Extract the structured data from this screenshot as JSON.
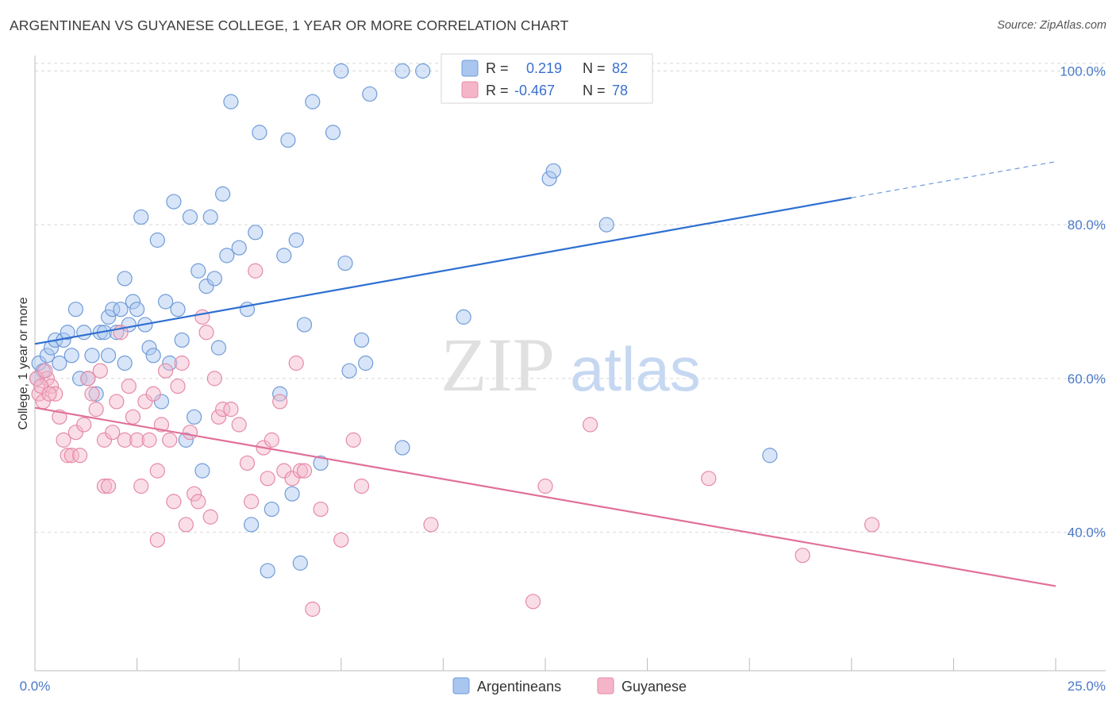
{
  "title": "ARGENTINEAN VS GUYANESE COLLEGE, 1 YEAR OR MORE CORRELATION CHART",
  "source": "Source: ZipAtlas.com",
  "watermark": {
    "zip": "ZIP",
    "atlas": "atlas"
  },
  "colors": {
    "blue_fill": "#a9c6ef",
    "blue_stroke": "#6f9bd8",
    "blue_line": "#2e6fd1",
    "pink_fill": "#f5b5c9",
    "pink_stroke": "#e58aa6",
    "pink_line": "#e0709a",
    "grid": "#d8d8d8",
    "tick_text": "#4a78c9"
  },
  "legend": {
    "rows": [
      {
        "r_label": "R =",
        "r_value": "0.219",
        "n_label": "N =",
        "n_value": "82"
      },
      {
        "r_label": "R =",
        "r_value": "-0.467",
        "n_label": "N =",
        "n_value": "78"
      }
    ]
  },
  "bottom_legend": [
    "Argentineans",
    "Guyanese"
  ],
  "chart_data": {
    "type": "scatter",
    "xlabel": "",
    "ylabel": "College, 1 year or more",
    "xlim": [
      0,
      25
    ],
    "ylim": [
      22,
      102
    ],
    "x_tick_labels": [
      "0.0%",
      "25.0%"
    ],
    "y_ticks": [
      40,
      60,
      80,
      100
    ],
    "y_tick_labels": [
      "40.0%",
      "60.0%",
      "80.0%",
      "100.0%"
    ],
    "grid": true,
    "series": [
      {
        "name": "Argentineans",
        "r": 0.219,
        "n": 82,
        "trend": {
          "x0": 0,
          "y0": 64.5,
          "x1": 20,
          "y1": 83.5,
          "dash_x1": 25,
          "dash_y1": 88.2
        },
        "points": [
          [
            0.1,
            62
          ],
          [
            0.2,
            61
          ],
          [
            0.3,
            63
          ],
          [
            0.4,
            64
          ],
          [
            0.5,
            65
          ],
          [
            0.6,
            62
          ],
          [
            0.7,
            65
          ],
          [
            0.8,
            66
          ],
          [
            0.9,
            63
          ],
          [
            1.0,
            69
          ],
          [
            1.1,
            60
          ],
          [
            1.2,
            66
          ],
          [
            1.3,
            60
          ],
          [
            1.4,
            63
          ],
          [
            1.5,
            58
          ],
          [
            1.6,
            66
          ],
          [
            1.7,
            66
          ],
          [
            1.8,
            68
          ],
          [
            1.8,
            63
          ],
          [
            1.9,
            69
          ],
          [
            2.0,
            66
          ],
          [
            2.1,
            69
          ],
          [
            2.2,
            62
          ],
          [
            2.2,
            73
          ],
          [
            2.3,
            67
          ],
          [
            2.4,
            70
          ],
          [
            2.5,
            69
          ],
          [
            2.6,
            81
          ],
          [
            2.7,
            67
          ],
          [
            2.8,
            64
          ],
          [
            2.9,
            63
          ],
          [
            3.0,
            78
          ],
          [
            3.1,
            57
          ],
          [
            3.2,
            70
          ],
          [
            3.3,
            62
          ],
          [
            3.4,
            83
          ],
          [
            3.5,
            69
          ],
          [
            3.6,
            65
          ],
          [
            3.7,
            52
          ],
          [
            3.8,
            81
          ],
          [
            3.9,
            55
          ],
          [
            4.0,
            74
          ],
          [
            4.1,
            48
          ],
          [
            4.2,
            72
          ],
          [
            4.3,
            81
          ],
          [
            4.4,
            73
          ],
          [
            4.5,
            64
          ],
          [
            4.6,
            84
          ],
          [
            4.7,
            76
          ],
          [
            4.8,
            96
          ],
          [
            5.0,
            77
          ],
          [
            5.2,
            69
          ],
          [
            5.3,
            41
          ],
          [
            5.4,
            79
          ],
          [
            5.5,
            92
          ],
          [
            5.7,
            35
          ],
          [
            5.8,
            43
          ],
          [
            6.0,
            58
          ],
          [
            6.1,
            76
          ],
          [
            6.2,
            91
          ],
          [
            6.3,
            45
          ],
          [
            6.4,
            78
          ],
          [
            6.5,
            36
          ],
          [
            6.6,
            67
          ],
          [
            6.8,
            96
          ],
          [
            7.0,
            49
          ],
          [
            7.3,
            92
          ],
          [
            7.5,
            100
          ],
          [
            7.6,
            75
          ],
          [
            7.7,
            61
          ],
          [
            8.0,
            65
          ],
          [
            8.1,
            62
          ],
          [
            8.2,
            97
          ],
          [
            9.0,
            51
          ],
          [
            9.0,
            100
          ],
          [
            9.5,
            100
          ],
          [
            10.5,
            68
          ],
          [
            12.6,
            86
          ],
          [
            12.7,
            87
          ],
          [
            14.0,
            80
          ],
          [
            18.0,
            50
          ],
          [
            0.05,
            60
          ]
        ]
      },
      {
        "name": "Guyanese",
        "r": -0.467,
        "n": 78,
        "trend": {
          "x0": 0,
          "y0": 56.2,
          "x1": 25,
          "y1": 33
        },
        "points": [
          [
            0.1,
            58
          ],
          [
            0.2,
            57
          ],
          [
            0.3,
            60
          ],
          [
            0.4,
            59
          ],
          [
            0.5,
            58
          ],
          [
            0.6,
            55
          ],
          [
            0.7,
            52
          ],
          [
            0.8,
            50
          ],
          [
            0.9,
            50
          ],
          [
            1.0,
            53
          ],
          [
            1.1,
            50
          ],
          [
            1.2,
            54
          ],
          [
            1.3,
            60
          ],
          [
            1.4,
            58
          ],
          [
            1.5,
            56
          ],
          [
            1.6,
            61
          ],
          [
            1.7,
            52
          ],
          [
            1.7,
            46
          ],
          [
            1.8,
            46
          ],
          [
            1.9,
            53
          ],
          [
            2.0,
            57
          ],
          [
            2.1,
            66
          ],
          [
            2.2,
            52
          ],
          [
            2.3,
            59
          ],
          [
            2.4,
            55
          ],
          [
            2.5,
            52
          ],
          [
            2.6,
            46
          ],
          [
            2.7,
            57
          ],
          [
            2.8,
            52
          ],
          [
            2.9,
            58
          ],
          [
            3.0,
            48
          ],
          [
            3.0,
            39
          ],
          [
            3.1,
            54
          ],
          [
            3.2,
            61
          ],
          [
            3.3,
            52
          ],
          [
            3.4,
            44
          ],
          [
            3.5,
            59
          ],
          [
            3.6,
            62
          ],
          [
            3.7,
            41
          ],
          [
            3.8,
            53
          ],
          [
            3.9,
            45
          ],
          [
            4.0,
            44
          ],
          [
            4.1,
            68
          ],
          [
            4.2,
            66
          ],
          [
            4.3,
            42
          ],
          [
            4.4,
            60
          ],
          [
            4.5,
            55
          ],
          [
            4.6,
            56
          ],
          [
            4.8,
            56
          ],
          [
            5.0,
            54
          ],
          [
            5.2,
            49
          ],
          [
            5.3,
            44
          ],
          [
            5.4,
            74
          ],
          [
            5.6,
            51
          ],
          [
            5.7,
            47
          ],
          [
            5.8,
            52
          ],
          [
            6.0,
            57
          ],
          [
            6.1,
            48
          ],
          [
            6.3,
            47
          ],
          [
            6.4,
            62
          ],
          [
            6.5,
            48
          ],
          [
            6.6,
            48
          ],
          [
            6.8,
            30
          ],
          [
            7.0,
            43
          ],
          [
            7.5,
            39
          ],
          [
            7.8,
            52
          ],
          [
            8.0,
            46
          ],
          [
            9.7,
            41
          ],
          [
            12.2,
            31
          ],
          [
            12.5,
            46
          ],
          [
            13.6,
            54
          ],
          [
            16.5,
            47
          ],
          [
            18.8,
            37
          ],
          [
            20.5,
            41
          ],
          [
            0.05,
            60
          ],
          [
            0.15,
            59
          ],
          [
            0.25,
            61
          ],
          [
            0.35,
            58
          ]
        ]
      }
    ]
  }
}
